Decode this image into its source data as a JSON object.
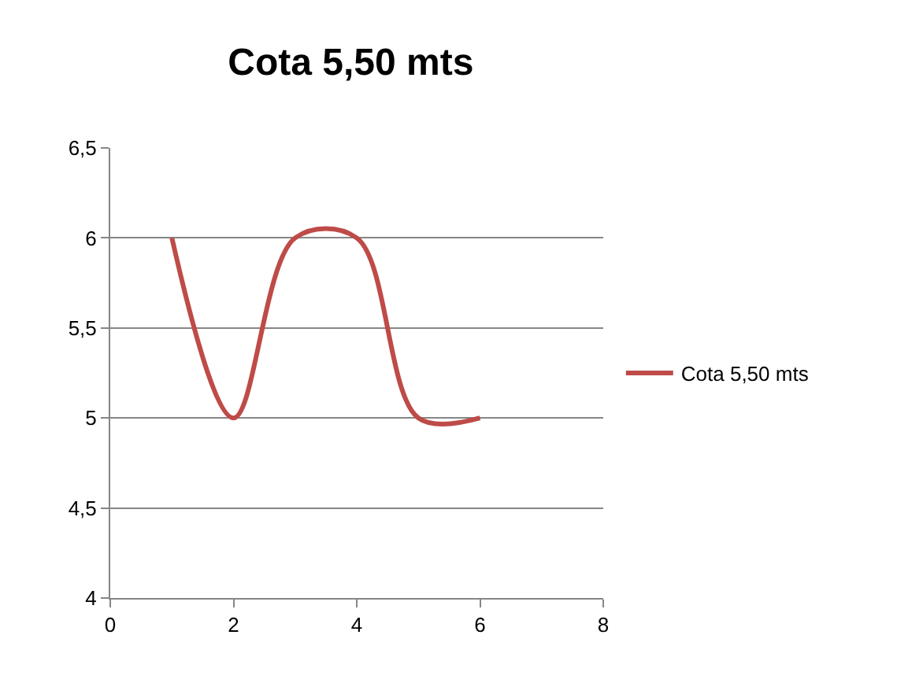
{
  "chart_data": {
    "type": "line",
    "title": "Cota 5,50 mts",
    "x": [
      1,
      2,
      3,
      4,
      5,
      6
    ],
    "series": [
      {
        "name": "Cota 5,50 mts",
        "color": "#be4b48",
        "values": [
          6,
          5,
          6,
          6,
          5,
          5
        ]
      }
    ],
    "xlim": [
      0,
      8
    ],
    "xticks": [
      0,
      2,
      4,
      6,
      8
    ],
    "ylim": [
      4,
      6.5
    ],
    "yticks": [
      4,
      {
        "value": 4.5,
        "label": "4,5"
      },
      5,
      {
        "value": 5.5,
        "label": "5,5"
      },
      6,
      {
        "value": 6.5,
        "label": "6,5"
      }
    ],
    "grid": "y",
    "legend": "right",
    "marker": "none",
    "line_style": "solid"
  }
}
